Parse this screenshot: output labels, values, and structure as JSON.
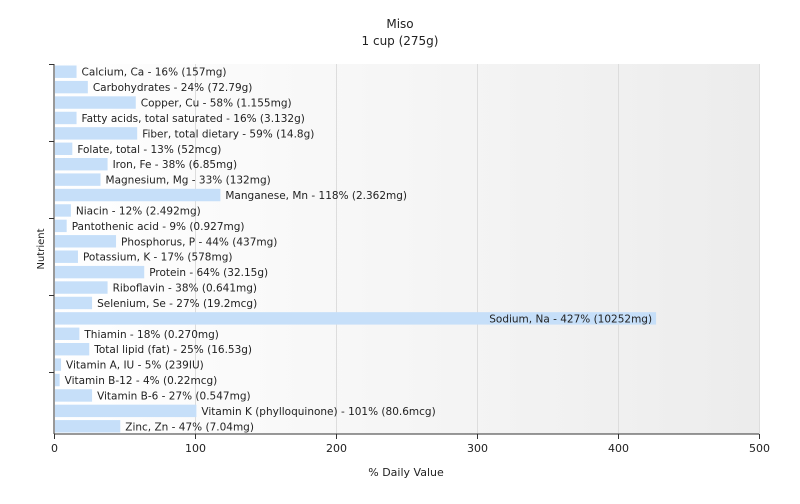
{
  "chart_data": {
    "type": "bar",
    "orientation": "horizontal",
    "title": "Miso",
    "subtitle": "1 cup (275g)",
    "xlabel": "% Daily Value",
    "ylabel": "Nutrient",
    "xlim": [
      0,
      500
    ],
    "xticks": [
      0,
      100,
      200,
      300,
      400,
      500
    ],
    "grid": true,
    "bar_color": "#c6dff9",
    "categories": [
      "Calcium, Ca",
      "Carbohydrates",
      "Copper, Cu",
      "Fatty acids, total saturated",
      "Fiber, total dietary",
      "Folate, total",
      "Iron, Fe",
      "Magnesium, Mg",
      "Manganese, Mn",
      "Niacin",
      "Pantothenic acid",
      "Phosphorus, P",
      "Potassium, K",
      "Protein",
      "Riboflavin",
      "Selenium, Se",
      "Sodium, Na",
      "Thiamin",
      "Total lipid (fat)",
      "Vitamin A, IU",
      "Vitamin B-12",
      "Vitamin B-6",
      "Vitamin K (phylloquinone)",
      "Zinc, Zn"
    ],
    "values": [
      16,
      24,
      58,
      16,
      59,
      13,
      38,
      33,
      118,
      12,
      9,
      44,
      17,
      64,
      38,
      27,
      427,
      18,
      25,
      5,
      4,
      27,
      101,
      47
    ],
    "labels": [
      "Calcium, Ca - 16% (157mg)",
      "Carbohydrates - 24% (72.79g)",
      "Copper, Cu - 58% (1.155mg)",
      "Fatty acids, total saturated - 16% (3.132g)",
      "Fiber, total dietary - 59% (14.8g)",
      "Folate, total - 13% (52mcg)",
      "Iron, Fe - 38% (6.85mg)",
      "Magnesium, Mg - 33% (132mg)",
      "Manganese, Mn - 118% (2.362mg)",
      "Niacin - 12% (2.492mg)",
      "Pantothenic acid - 9% (0.927mg)",
      "Phosphorus, P - 44% (437mg)",
      "Potassium, K - 17% (578mg)",
      "Protein - 64% (32.15g)",
      "Riboflavin - 38% (0.641mg)",
      "Selenium, Se - 27% (19.2mcg)",
      "Sodium, Na - 427% (10252mg)",
      "Thiamin - 18% (0.270mg)",
      "Total lipid (fat) - 25% (16.53g)",
      "Vitamin A, IU - 5% (239IU)",
      "Vitamin B-12 - 4% (0.22mcg)",
      "Vitamin B-6 - 27% (0.547mg)",
      "Vitamin K (phylloquinone) - 101% (80.6mcg)",
      "Zinc, Zn - 47% (7.04mg)"
    ]
  }
}
